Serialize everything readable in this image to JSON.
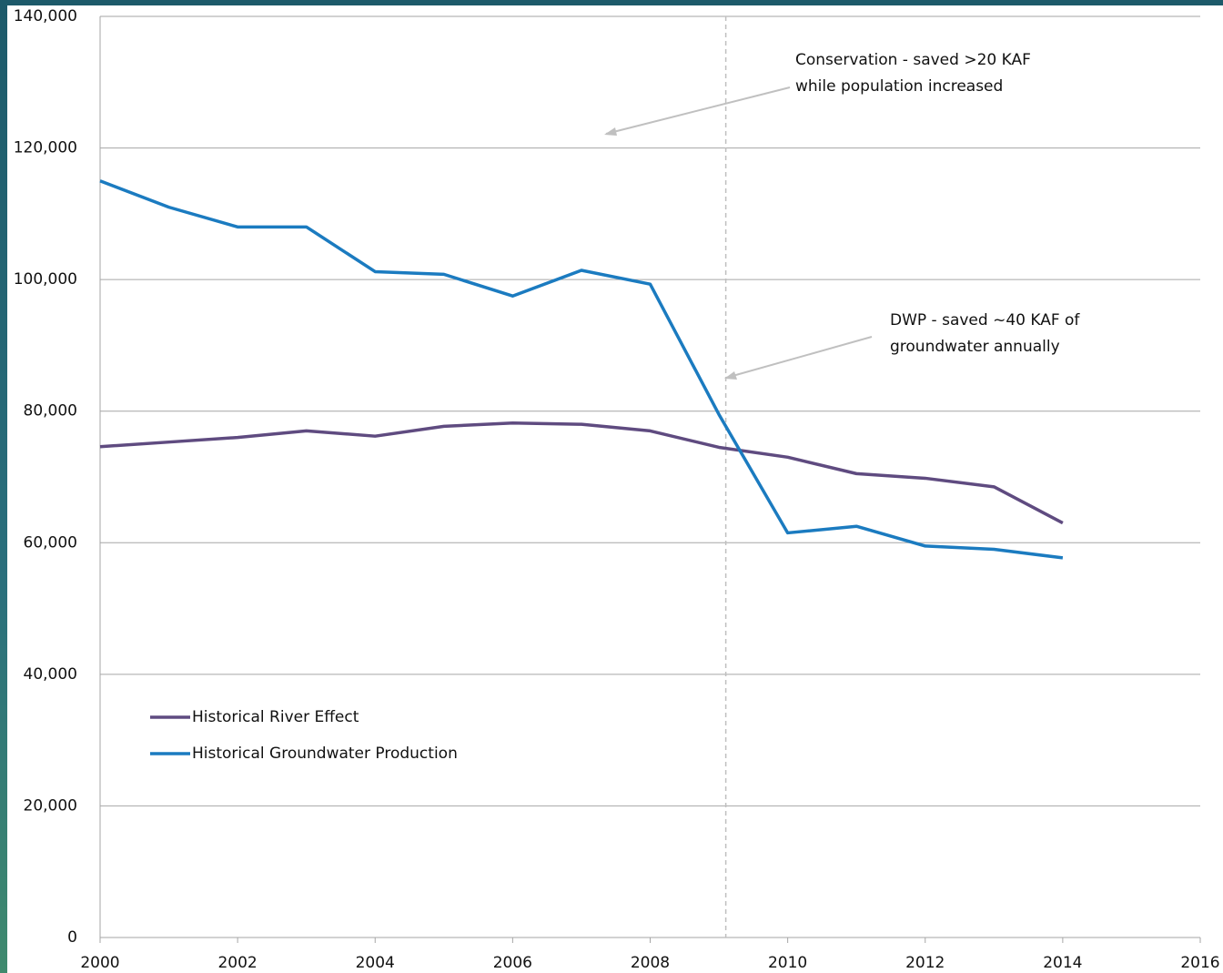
{
  "chart_data": {
    "type": "line",
    "x": [
      2000,
      2001,
      2002,
      2003,
      2004,
      2005,
      2006,
      2007,
      2008,
      2009,
      2010,
      2011,
      2012,
      2013,
      2014
    ],
    "series": [
      {
        "name": "Historical River Effect",
        "color": "#5f4b80",
        "values": [
          74600,
          75300,
          76000,
          77000,
          76200,
          77700,
          78200,
          78000,
          77000,
          74500,
          73000,
          70500,
          69800,
          68500,
          63000
        ]
      },
      {
        "name": "Historical Groundwater Production",
        "color": "#1b7bc0",
        "values": [
          115000,
          111000,
          108000,
          108000,
          101200,
          100800,
          97500,
          101400,
          99300,
          79500,
          61500,
          62500,
          59500,
          59000,
          57700
        ]
      }
    ],
    "xlim": [
      2000,
      2016
    ],
    "xticks": [
      2000,
      2002,
      2004,
      2006,
      2008,
      2010,
      2012,
      2014,
      2016
    ],
    "ylim": [
      0,
      140000
    ],
    "yticks": [
      0,
      {
        "value": 20000,
        "label": "20,000"
      },
      {
        "value": 40000,
        "label": "40,000"
      },
      {
        "value": 60000,
        "label": "60,000"
      },
      {
        "value": 80000,
        "label": "80,000"
      },
      {
        "value": 100000,
        "label": "100,000"
      },
      {
        "value": 120000,
        "label": "120,000"
      },
      {
        "value": 140000,
        "label": "140,000"
      }
    ],
    "grid": true,
    "legend": "lower left",
    "vline_x": 2009.1,
    "annotations": [
      {
        "lines": [
          "Conservation - saved >20 KAF",
          "while population increased"
        ]
      },
      {
        "lines": [
          "DWP - saved ~40 KAF of",
          "groundwater annually"
        ]
      }
    ]
  }
}
